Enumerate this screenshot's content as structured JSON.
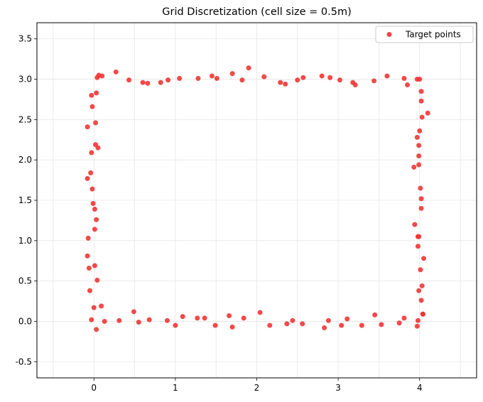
{
  "chart_data": {
    "type": "scatter",
    "title": "Grid Discretization (cell size = 0.5m)",
    "xlabel": "",
    "ylabel": "",
    "xlim": [
      -0.7,
      4.7
    ],
    "ylim": [
      -0.7,
      3.7
    ],
    "xticks": [
      0,
      1,
      2,
      3,
      4
    ],
    "yticks": [
      -0.5,
      0.0,
      0.5,
      1.0,
      1.5,
      2.0,
      2.5,
      3.0,
      3.5
    ],
    "ytick_labels": [
      "-0.5",
      "0.0",
      "0.5",
      "1.0",
      "1.5",
      "2.0",
      "2.5",
      "3.0",
      "3.5"
    ],
    "grid": true,
    "vertical_grid_spacing": 0.5,
    "legend_position": "top-right",
    "series": [
      {
        "name": "Target points",
        "color": "#f03030",
        "marker": "circle",
        "points": [
          [
            -0.03,
            0.02
          ],
          [
            0.03,
            -0.1
          ],
          [
            0.13,
            0.0
          ],
          [
            0.31,
            0.01
          ],
          [
            0.49,
            0.12
          ],
          [
            0.55,
            -0.01
          ],
          [
            0.68,
            0.02
          ],
          [
            0.9,
            0.01
          ],
          [
            1.0,
            -0.05
          ],
          [
            1.09,
            0.06
          ],
          [
            1.27,
            0.04
          ],
          [
            1.36,
            0.04
          ],
          [
            1.49,
            -0.05
          ],
          [
            1.66,
            0.07
          ],
          [
            1.7,
            -0.07
          ],
          [
            1.84,
            0.04
          ],
          [
            2.04,
            0.11
          ],
          [
            2.16,
            -0.05
          ],
          [
            2.37,
            -0.03
          ],
          [
            2.44,
            0.01
          ],
          [
            2.56,
            -0.03
          ],
          [
            2.83,
            -0.08
          ],
          [
            2.88,
            0.01
          ],
          [
            3.04,
            -0.05
          ],
          [
            3.11,
            0.03
          ],
          [
            3.29,
            -0.05
          ],
          [
            3.45,
            0.08
          ],
          [
            3.53,
            -0.04
          ],
          [
            3.75,
            -0.02
          ],
          [
            3.81,
            0.04
          ],
          [
            3.97,
            -0.06
          ],
          [
            3.98,
            0.01
          ],
          [
            4.04,
            0.09
          ],
          [
            -0.08,
            0.81
          ],
          [
            -0.06,
            0.66
          ],
          [
            -0.05,
            0.38
          ],
          [
            0.0,
            0.17
          ],
          [
            0.09,
            0.19
          ],
          [
            0.01,
            0.69
          ],
          [
            0.04,
            0.51
          ],
          [
            -0.07,
            1.03
          ],
          [
            0.01,
            1.14
          ],
          [
            0.03,
            1.26
          ],
          [
            0.01,
            1.39
          ],
          [
            -0.01,
            1.46
          ],
          [
            -0.02,
            1.64
          ],
          [
            -0.08,
            1.77
          ],
          [
            -0.04,
            1.84
          ],
          [
            -0.03,
            2.09
          ],
          [
            0.05,
            2.15
          ],
          [
            0.02,
            2.19
          ],
          [
            -0.08,
            2.41
          ],
          [
            0.02,
            2.46
          ],
          [
            -0.02,
            2.66
          ],
          [
            -0.03,
            2.8
          ],
          [
            0.03,
            2.83
          ],
          [
            0.04,
            3.02
          ],
          [
            0.06,
            3.05
          ],
          [
            0.1,
            3.04
          ],
          [
            0.27,
            3.09
          ],
          [
            0.43,
            2.99
          ],
          [
            0.6,
            2.96
          ],
          [
            0.66,
            2.95
          ],
          [
            0.82,
            2.96
          ],
          [
            0.91,
            2.99
          ],
          [
            1.05,
            3.01
          ],
          [
            1.28,
            3.01
          ],
          [
            1.45,
            3.04
          ],
          [
            1.51,
            3.01
          ],
          [
            1.7,
            3.07
          ],
          [
            1.82,
            2.99
          ],
          [
            1.9,
            3.14
          ],
          [
            2.09,
            3.03
          ],
          [
            2.29,
            2.96
          ],
          [
            2.35,
            2.94
          ],
          [
            2.5,
            2.99
          ],
          [
            2.57,
            3.02
          ],
          [
            2.8,
            3.04
          ],
          [
            2.9,
            3.02
          ],
          [
            3.02,
            2.99
          ],
          [
            3.18,
            2.96
          ],
          [
            3.21,
            2.93
          ],
          [
            3.44,
            2.98
          ],
          [
            3.6,
            3.04
          ],
          [
            3.81,
            3.01
          ],
          [
            3.85,
            2.93
          ],
          [
            3.97,
            3.0
          ],
          [
            4.0,
            3.0
          ],
          [
            4.02,
            2.85
          ],
          [
            4.02,
            2.73
          ],
          [
            4.03,
            2.53
          ],
          [
            4.1,
            2.58
          ],
          [
            4.0,
            2.36
          ],
          [
            3.97,
            2.28
          ],
          [
            3.99,
            2.18
          ],
          [
            3.99,
            2.05
          ],
          [
            3.99,
            1.94
          ],
          [
            3.93,
            1.91
          ],
          [
            4.01,
            1.65
          ],
          [
            4.02,
            1.52
          ],
          [
            4.02,
            1.4
          ],
          [
            3.94,
            1.2
          ],
          [
            3.98,
            1.05
          ],
          [
            3.99,
            1.05
          ],
          [
            3.98,
            0.93
          ],
          [
            4.05,
            0.78
          ],
          [
            4.01,
            0.64
          ],
          [
            4.03,
            0.44
          ],
          [
            3.99,
            0.38
          ],
          [
            4.02,
            0.26
          ],
          [
            4.04,
            0.09
          ]
        ]
      }
    ]
  }
}
